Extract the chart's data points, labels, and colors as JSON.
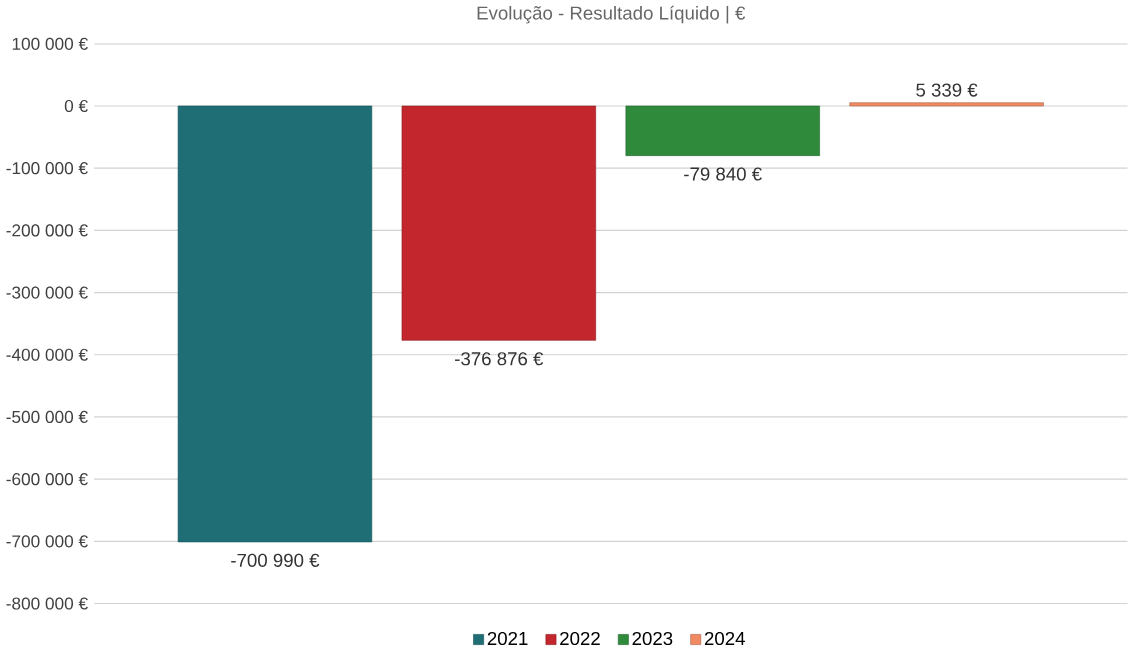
{
  "chart_data": {
    "type": "bar",
    "title": "Evolução - Resultado Líquido | €",
    "categories": [
      null
    ],
    "series": [
      {
        "name": "2021",
        "color": "#1f6e76",
        "values": [
          -700990
        ],
        "value_labels": [
          "-700 990 €"
        ]
      },
      {
        "name": "2022",
        "color": "#c4262e",
        "values": [
          -376876
        ],
        "value_labels": [
          "-376 876 €"
        ]
      },
      {
        "name": "2023",
        "color": "#2f8a3c",
        "values": [
          -79840
        ],
        "value_labels": [
          "-79 840 €"
        ]
      },
      {
        "name": "2024",
        "color": "#ef8a62",
        "values": [
          5339
        ],
        "value_labels": [
          "5 339 €"
        ]
      }
    ],
    "ylim": [
      -800000,
      100000
    ],
    "yticks": [
      {
        "value": 100000,
        "label": "100 000 €"
      },
      {
        "value": 0,
        "label": "0 €"
      },
      {
        "value": -100000,
        "label": "-100 000 €"
      },
      {
        "value": -200000,
        "label": "-200 000 €"
      },
      {
        "value": -300000,
        "label": "-300 000 €"
      },
      {
        "value": -400000,
        "label": "-400 000 €"
      },
      {
        "value": -500000,
        "label": "-500 000 €"
      },
      {
        "value": -600000,
        "label": "-600 000 €"
      },
      {
        "value": -700000,
        "label": "-700 000 €"
      },
      {
        "value": -800000,
        "label": "-800 000 €"
      }
    ],
    "grid": "y",
    "legend": "bottom",
    "tick_labels": "y"
  }
}
